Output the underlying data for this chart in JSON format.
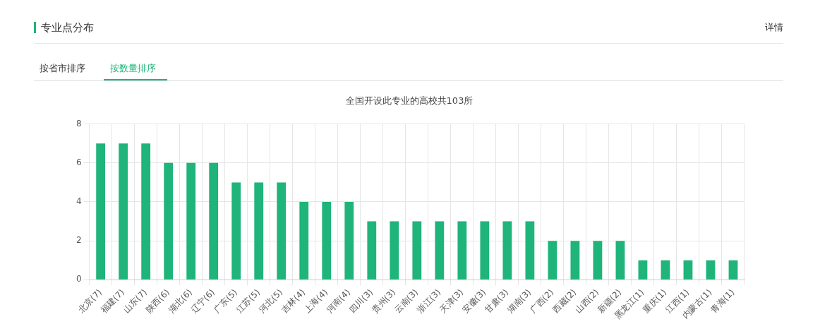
{
  "chart_data": {
    "type": "bar",
    "title": "全国开设此专业的高校共103所",
    "annotations": [
      "专业点分布",
      "详情",
      "按省市排序",
      "按数量排序"
    ],
    "categories": [
      "北京(7)",
      "福建(7)",
      "山东(7)",
      "陕西(6)",
      "湖北(6)",
      "辽宁(6)",
      "广东(5)",
      "江苏(5)",
      "河北(5)",
      "吉林(4)",
      "上海(4)",
      "河南(4)",
      "四川(3)",
      "贵州(3)",
      "云南(3)",
      "浙江(3)",
      "天津(3)",
      "安徽(3)",
      "甘肃(3)",
      "湖南(3)",
      "广西(2)",
      "西藏(2)",
      "山西(2)",
      "新疆(2)",
      "黑龙江(1)",
      "重庆(1)",
      "江西(1)",
      "内蒙古(1)",
      "青海(1)"
    ],
    "values": [
      7,
      7,
      7,
      6,
      6,
      6,
      5,
      5,
      5,
      4,
      4,
      4,
      3,
      3,
      3,
      3,
      3,
      3,
      3,
      3,
      2,
      2,
      2,
      2,
      1,
      1,
      1,
      1,
      1
    ],
    "color": "#1fb47a",
    "ylim": [
      0,
      8
    ],
    "yticks": [
      0,
      2,
      4,
      6,
      8
    ],
    "grid": true
  }
}
